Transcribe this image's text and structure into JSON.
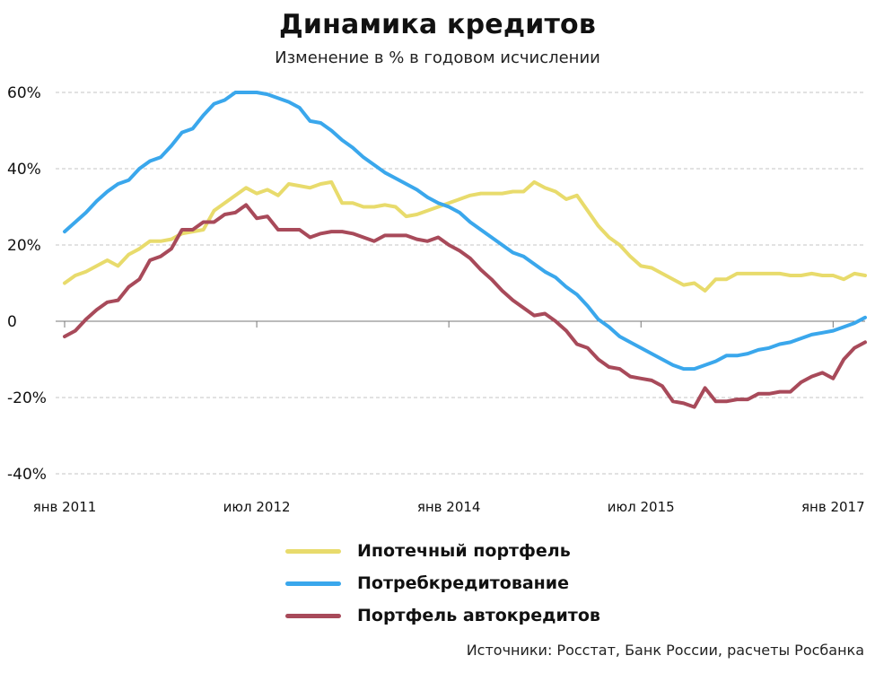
{
  "chart_data": {
    "type": "line",
    "title": "Динамика кредитов",
    "subtitle": "Изменение в % в годовом исчислении",
    "source": "Источники: Росстат, Банк России, расчеты Росбанка",
    "ylim": [
      -40,
      60
    ],
    "yticks": [
      60,
      40,
      20,
      0,
      -20,
      -40
    ],
    "ytick_labels": [
      "60%",
      "40%",
      "20%",
      "0",
      "-20%",
      "-40%"
    ],
    "xlim": [
      0,
      75
    ],
    "xticks": [
      0,
      18,
      36,
      54,
      72
    ],
    "xtick_labels": [
      "янв 2011",
      "июл 2012",
      "янв 2014",
      "июл 2015",
      "янв 2017"
    ],
    "grid": true,
    "legend_position": "bottom",
    "series": [
      {
        "name": "Ипотечный портфель",
        "color": "#e8db6c",
        "values": [
          10,
          12,
          13,
          14.5,
          16,
          14.5,
          17.5,
          19,
          21,
          21,
          21.5,
          23,
          23.5,
          24,
          29,
          31,
          33,
          35,
          33.5,
          34.5,
          33,
          36,
          35.5,
          35,
          36,
          36.5,
          31,
          31,
          30,
          30,
          30.5,
          30,
          27.5,
          28,
          29,
          30,
          31,
          32,
          33,
          33.5,
          33.5,
          33.5,
          34,
          34,
          36.5,
          35,
          34,
          32,
          33,
          29,
          25,
          22,
          20,
          17,
          14.5,
          14,
          12.5,
          11,
          9.5,
          10,
          8,
          11,
          11,
          12.5,
          12.5,
          12.5,
          12.5,
          12.5,
          12,
          12,
          12.5,
          12,
          12,
          11,
          12.5,
          12
        ]
      },
      {
        "name": "Потребкредитование",
        "color": "#3aa7ec",
        "values": [
          23.5,
          26,
          28.5,
          31.5,
          34,
          36,
          37,
          40,
          42,
          43,
          46,
          49.5,
          50.5,
          54,
          57,
          58,
          60,
          60,
          60,
          59.5,
          58.5,
          57.5,
          56,
          52.5,
          52,
          50,
          47.5,
          45.5,
          43,
          41,
          39,
          37.5,
          36,
          34.5,
          32.5,
          31,
          30,
          28.5,
          26,
          24,
          22,
          20,
          18,
          17,
          15,
          13,
          11.5,
          9,
          7,
          4,
          0.5,
          -1.5,
          -4,
          -5.5,
          -7,
          -8.5,
          -10,
          -11.5,
          -12.5,
          -12.5,
          -11.5,
          -10.5,
          -9,
          -9,
          -8.5,
          -7.5,
          -7,
          -6,
          -5.5,
          -4.5,
          -3.5,
          -3,
          -2.5,
          -1.5,
          -0.5,
          1
        ]
      },
      {
        "name": "Портфель автокредитов",
        "color": "#a84a5a",
        "values": [
          -4,
          -2.5,
          0.5,
          3,
          5,
          5.5,
          9,
          11,
          16,
          17,
          19,
          24,
          24,
          26,
          26,
          28,
          28.5,
          30.5,
          27,
          27.5,
          24,
          24,
          24,
          22,
          23,
          23.5,
          23.5,
          23,
          22,
          21,
          22.5,
          22.5,
          22.5,
          21.5,
          21,
          22,
          20,
          18.5,
          16.5,
          13.5,
          11,
          8,
          5.5,
          3.5,
          1.5,
          2,
          0,
          -2.5,
          -6,
          -7,
          -10,
          -12,
          -12.5,
          -14.5,
          -15,
          -15.5,
          -17,
          -21,
          -21.5,
          -22.5,
          -17.5,
          -21,
          -21,
          -20.5,
          -20.5,
          -19,
          -19,
          -18.5,
          -18.5,
          -16,
          -14.5,
          -13.5,
          -15,
          -10,
          -7,
          -5.5
        ]
      }
    ]
  }
}
